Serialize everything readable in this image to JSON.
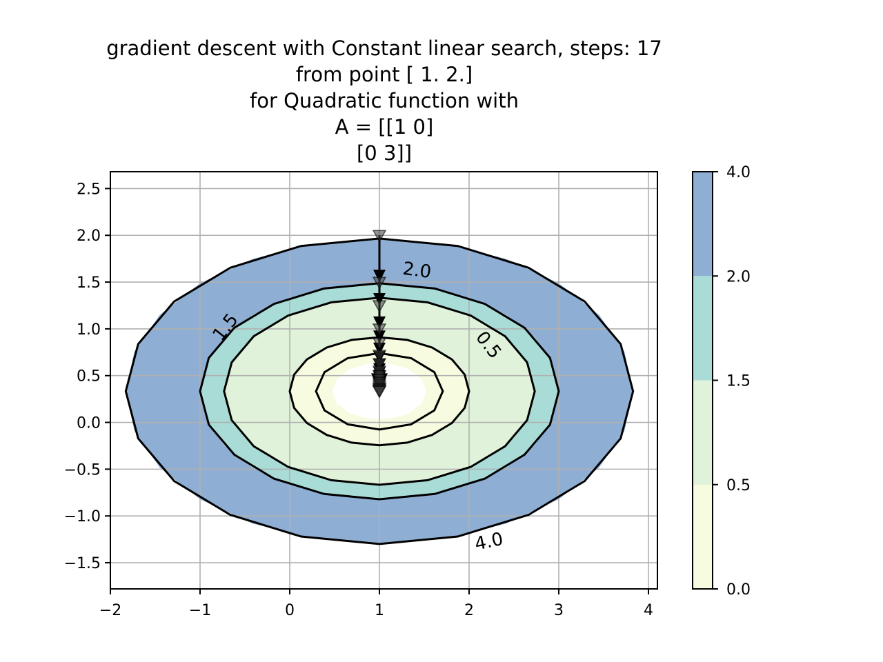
{
  "chart_data": {
    "type": "contour",
    "title_lines": [
      "gradient descent with Constant linear search, steps: 17",
      "from point [ 1.  2.]",
      "for Quadratic function with",
      "A = [[1 0]",
      " [0 3]]"
    ],
    "xlabel": "",
    "ylabel": "",
    "xlim": [
      -2,
      4.1
    ],
    "ylim": [
      -1.78,
      2.68
    ],
    "xticks": [
      -2,
      -1,
      0,
      1,
      2,
      3,
      4
    ],
    "yticks": [
      -1.5,
      -1.0,
      -0.5,
      0.0,
      0.5,
      1.0,
      1.5,
      2.0,
      2.5
    ],
    "xtick_labels": [
      "−2",
      "−1",
      "0",
      "1",
      "2",
      "3",
      "4"
    ],
    "ytick_labels": [
      "−1.5",
      "−1.0",
      "−0.5",
      "0.0",
      "0.5",
      "1.0",
      "1.5",
      "2.0",
      "2.5"
    ],
    "grid": true,
    "function": {
      "A": [
        [
          1,
          0
        ],
        [
          0,
          3
        ]
      ],
      "center": [
        1,
        0.333
      ]
    },
    "levels": [
      0.0,
      0.5,
      1.5,
      2.0,
      4.0
    ],
    "level_colors": [
      "#f7fbe0",
      "#e0f2d9",
      "#a9dcd7",
      "#8faed4"
    ],
    "contour_labels": [
      {
        "text": "2.0",
        "x": 1.42,
        "y": 1.63,
        "rotation": 8
      },
      {
        "text": "1.5",
        "x": -0.72,
        "y": 1.02,
        "rotation": -52
      },
      {
        "text": "0.5",
        "x": 2.22,
        "y": 0.83,
        "rotation": 52
      },
      {
        "text": "4.0",
        "x": 2.22,
        "y": -1.27,
        "rotation": -12
      }
    ],
    "path": {
      "steps": 17,
      "start": [
        1,
        2
      ],
      "x": [
        1,
        1,
        1,
        1,
        1,
        1,
        1,
        1,
        1,
        1,
        1,
        1,
        1,
        1,
        1,
        1,
        1,
        1
      ],
      "y": [
        2.0,
        1.5,
        1.25,
        1.0,
        0.85,
        0.72,
        0.63,
        0.55,
        0.5,
        0.46,
        0.43,
        0.41,
        0.39,
        0.37,
        0.36,
        0.35,
        0.34,
        0.333
      ]
    },
    "colorbar": {
      "ticks": [
        0.0,
        0.5,
        1.5,
        2.0,
        4.0
      ],
      "tick_labels": [
        "0.0",
        "0.5",
        "1.5",
        "2.0",
        "4.0"
      ]
    }
  }
}
